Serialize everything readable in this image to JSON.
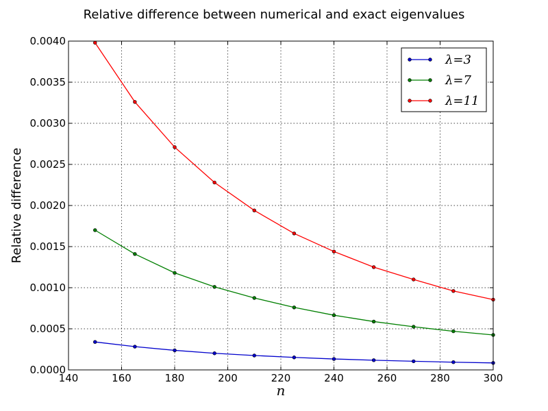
{
  "chart_data": {
    "type": "line",
    "title": "Relative difference between numerical and exact eigenvalues",
    "xlabel": "n",
    "ylabel": "Relative difference",
    "xlim": [
      140,
      300
    ],
    "ylim": [
      0.0,
      0.004
    ],
    "grid": true,
    "legend_position": "top-right",
    "x_ticks": [
      "140",
      "160",
      "180",
      "200",
      "220",
      "240",
      "260",
      "280",
      "300"
    ],
    "y_ticks": [
      "0.0000",
      "0.0005",
      "0.0010",
      "0.0015",
      "0.0020",
      "0.0025",
      "0.0030",
      "0.0035",
      "0.0040"
    ],
    "x": [
      150,
      165,
      180,
      195,
      210,
      225,
      240,
      255,
      270,
      285,
      300
    ],
    "series": [
      {
        "name": "λ=3",
        "color": "#0000cc",
        "values": [
          0.00034,
          0.000283,
          0.000238,
          0.000202,
          0.000175,
          0.000152,
          0.000133,
          0.000118,
          0.000105,
          9.4e-05,
          8.5e-05
        ]
      },
      {
        "name": "λ=7",
        "color": "#007f00",
        "values": [
          0.0017,
          0.00141,
          0.00118,
          0.00101,
          0.000875,
          0.00076,
          0.000665,
          0.000588,
          0.000525,
          0.00047,
          0.000425
        ]
      },
      {
        "name": "λ=11",
        "color": "#ff0000",
        "values": [
          0.00398,
          0.00326,
          0.00271,
          0.00228,
          0.00194,
          0.00166,
          0.00144,
          0.00125,
          0.0011,
          0.00096,
          0.000855
        ]
      }
    ]
  }
}
